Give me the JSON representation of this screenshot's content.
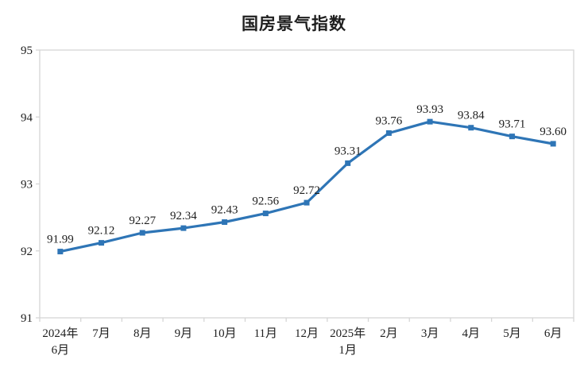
{
  "chart_data": {
    "type": "line",
    "title": "国房景气指数",
    "categories": [
      [
        "2024年",
        "6月"
      ],
      [
        "7月"
      ],
      [
        "8月"
      ],
      [
        "9月"
      ],
      [
        "10月"
      ],
      [
        "11月"
      ],
      [
        "12月"
      ],
      [
        "2025年",
        "1月"
      ],
      [
        "2月"
      ],
      [
        "3月"
      ],
      [
        "4月"
      ],
      [
        "5月"
      ],
      [
        "6月"
      ]
    ],
    "values": [
      91.99,
      92.12,
      92.27,
      92.34,
      92.43,
      92.56,
      92.72,
      93.31,
      93.76,
      93.93,
      93.84,
      93.71,
      93.6
    ],
    "point_labels": [
      "91.99",
      "92.12",
      "92.27",
      "92.34",
      "92.43",
      "92.56",
      "92.72",
      "93.31",
      "93.76",
      "93.93",
      "93.84",
      "93.71",
      "93.60"
    ],
    "xlabel": "",
    "ylabel": "",
    "ylim": [
      91,
      95
    ],
    "yticks": [
      "91",
      "92",
      "93",
      "94",
      "95"
    ],
    "grid": "off",
    "legend": "none",
    "line_color": "#2E75B6",
    "marker": "square",
    "axis_color": "#D6D6D6",
    "text_color": "#1e1e1e"
  }
}
